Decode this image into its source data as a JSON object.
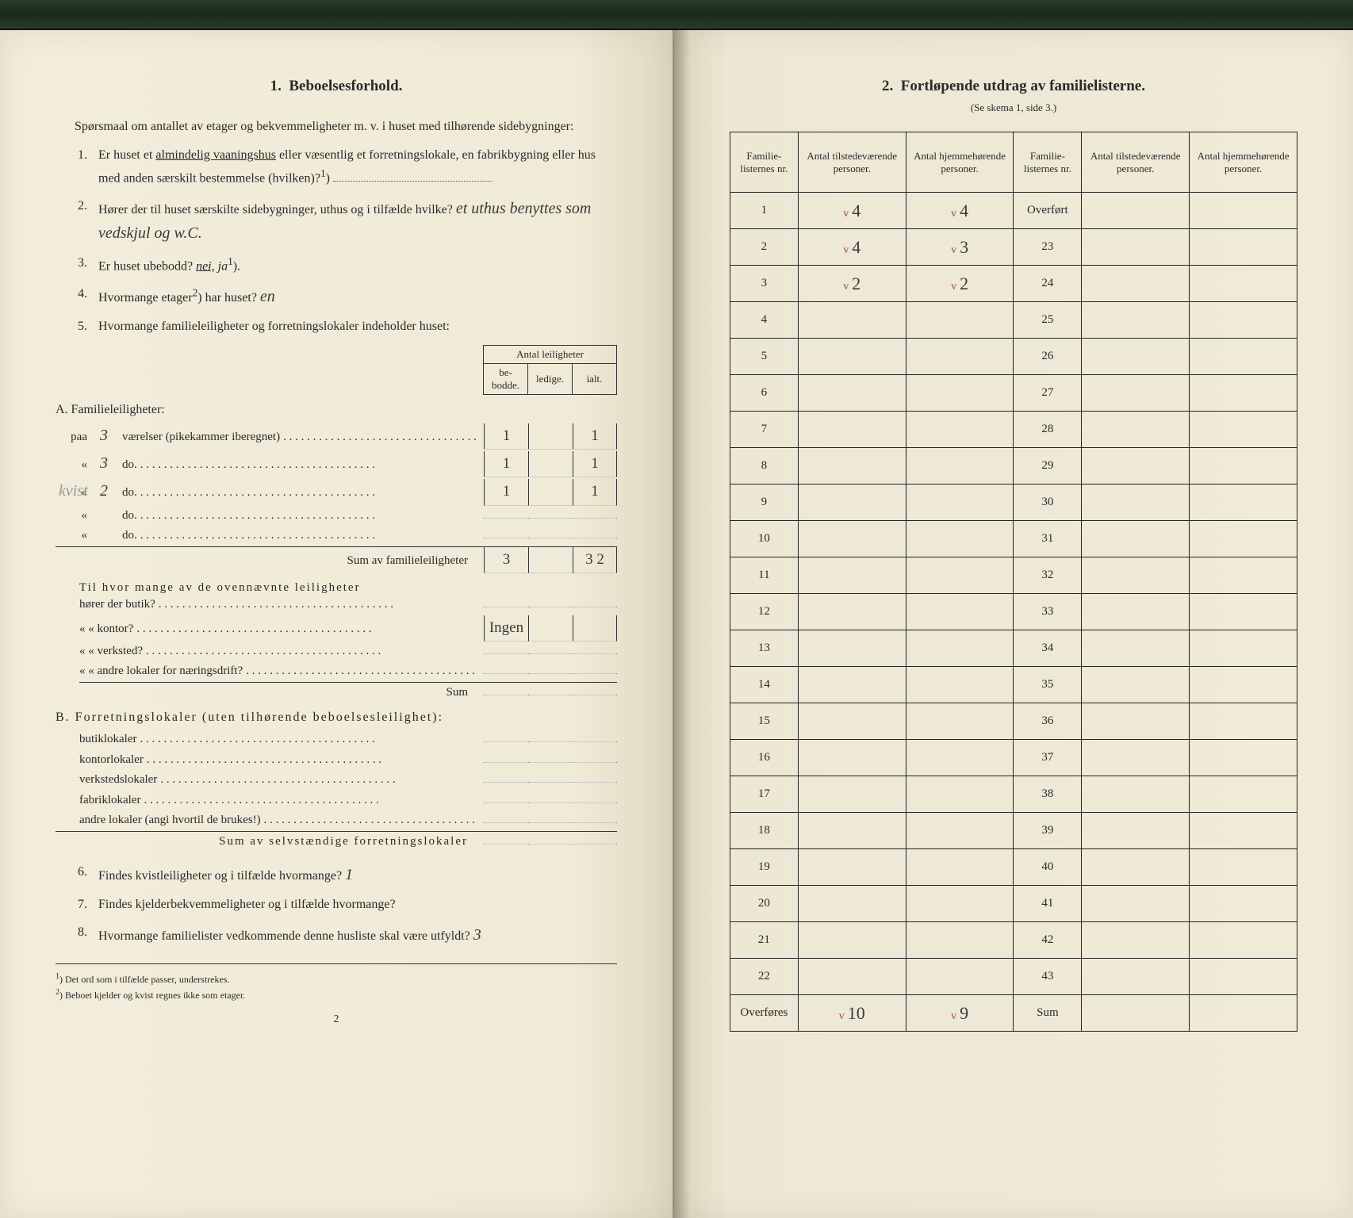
{
  "top_strip_color": "#1f2e1f",
  "page_bg": "#f0ead8",
  "text_color": "#2a2a2a",
  "handwriting_color": "#3a3a3a",
  "check_color": "#b04040",
  "left": {
    "section_num": "1.",
    "section_title": "Beboelsesforhold.",
    "intro": "Spørsmaal om antallet av etager og bekvemmeligheter m. v. i huset med tilhørende sidebygninger:",
    "questions": {
      "q1": {
        "num": "1.",
        "text_a": "Er huset et ",
        "underlined": "almindelig vaaningshus",
        "text_b": " eller væsentlig et forretningslokale, en fabrikbygning eller hus med anden særskilt bestemmelse (hvilken)?",
        "sup": "1"
      },
      "q2": {
        "num": "2.",
        "text": "Hører der til huset særskilte sidebygninger, uthus og i tilfælde hvilke?",
        "answer": "et uthus benyttes som vedskjul og w.C."
      },
      "q3": {
        "num": "3.",
        "text": "Er huset ubebodd?",
        "answer_pre": "nei,",
        "answer_post": " ja",
        "sup": "1"
      },
      "q4": {
        "num": "4.",
        "text": "Hvormange etager",
        "sup": "2",
        "text_b": ") har huset?",
        "answer": "en"
      },
      "q5": {
        "num": "5.",
        "text": "Hvormange familieleiligheter og forretningslokaler indeholder huset:"
      }
    },
    "mini_table": {
      "header_top": "Antal leiligheter",
      "headers": [
        "be-\nbodde.",
        "ledige.",
        "ialt."
      ]
    },
    "section_a": {
      "label": "A. Familieleiligheter:",
      "rows": [
        {
          "prefix": "paa",
          "hw": "3",
          "label": "værelser (pikekammer iberegnet)",
          "cells": [
            "1",
            "",
            "1"
          ]
        },
        {
          "prefix": "«",
          "hw": "3",
          "label": "do.",
          "cells": [
            "1",
            "",
            "1"
          ]
        },
        {
          "prefix": "«",
          "hw": "2",
          "label": "do.",
          "cells": [
            "1",
            "",
            "1"
          ],
          "note": "kvist"
        },
        {
          "prefix": "«",
          "hw": "",
          "label": "do.",
          "cells": [
            "",
            "",
            ""
          ]
        },
        {
          "prefix": "«",
          "hw": "",
          "label": "do.",
          "cells": [
            "",
            "",
            ""
          ]
        }
      ],
      "sum_label": "Sum av familieleiligheter",
      "sum_cells": [
        "3",
        "",
        "3 2"
      ]
    },
    "extras": {
      "intro": "Til hvor mange av de ovennævnte leiligheter",
      "rows": [
        {
          "label": "hører der butik?",
          "hw": ""
        },
        {
          "label": "«      «   kontor?",
          "hw": "Ingen"
        },
        {
          "label": "«      «   verksted?",
          "hw": ""
        },
        {
          "label": "«      «   andre lokaler for næringsdrift?",
          "hw": ""
        }
      ],
      "sum": "Sum"
    },
    "section_b": {
      "label": "B. Forretningslokaler (uten tilhørende beboelsesleilighet):",
      "rows": [
        "butiklokaler",
        "kontorlokaler",
        "verkstedslokaler",
        "fabriklokaler",
        "andre lokaler (angi hvortil de brukes!)"
      ],
      "sum_label": "Sum av selvstændige forretningslokaler"
    },
    "q6": {
      "num": "6.",
      "text": "Findes kvistleiligheter og i tilfælde hvormange?",
      "answer": "1"
    },
    "q7": {
      "num": "7.",
      "text": "Findes kjelderbekvemmeligheter og i tilfælde hvormange?"
    },
    "q8": {
      "num": "8.",
      "text": "Hvormange familielister vedkommende denne husliste skal være utfyldt?",
      "answer": "3"
    },
    "footnotes": {
      "f1": "Det ord som i tilfælde passer, understrekes.",
      "f2": "Beboet kjelder og kvist regnes ikke som etager."
    },
    "page_num": "2"
  },
  "right": {
    "section_num": "2.",
    "section_title": "Fortløpende utdrag av familielisterne.",
    "subtitle": "(Se skema 1, side 3.)",
    "headers": [
      "Familie-\nlisternes\nnr.",
      "Antal\ntilstedeværende\npersoner.",
      "Antal\nhjemmehørende\npersoner.",
      "Familie-\nlisternes\nnr.",
      "Antal\ntilstedeværende\npersoner.",
      "Antal\nhjemmehørende\npersoner."
    ],
    "rows": [
      {
        "l": "1",
        "a": "4",
        "b": "4",
        "r": "Overført",
        "c": "",
        "d": ""
      },
      {
        "l": "2",
        "a": "4",
        "b": "3",
        "r": "23",
        "c": "",
        "d": ""
      },
      {
        "l": "3",
        "a": "2",
        "b": "2",
        "r": "24",
        "c": "",
        "d": ""
      },
      {
        "l": "4",
        "a": "",
        "b": "",
        "r": "25",
        "c": "",
        "d": ""
      },
      {
        "l": "5",
        "a": "",
        "b": "",
        "r": "26",
        "c": "",
        "d": ""
      },
      {
        "l": "6",
        "a": "",
        "b": "",
        "r": "27",
        "c": "",
        "d": ""
      },
      {
        "l": "7",
        "a": "",
        "b": "",
        "r": "28",
        "c": "",
        "d": ""
      },
      {
        "l": "8",
        "a": "",
        "b": "",
        "r": "29",
        "c": "",
        "d": ""
      },
      {
        "l": "9",
        "a": "",
        "b": "",
        "r": "30",
        "c": "",
        "d": ""
      },
      {
        "l": "10",
        "a": "",
        "b": "",
        "r": "31",
        "c": "",
        "d": ""
      },
      {
        "l": "11",
        "a": "",
        "b": "",
        "r": "32",
        "c": "",
        "d": ""
      },
      {
        "l": "12",
        "a": "",
        "b": "",
        "r": "33",
        "c": "",
        "d": ""
      },
      {
        "l": "13",
        "a": "",
        "b": "",
        "r": "34",
        "c": "",
        "d": ""
      },
      {
        "l": "14",
        "a": "",
        "b": "",
        "r": "35",
        "c": "",
        "d": ""
      },
      {
        "l": "15",
        "a": "",
        "b": "",
        "r": "36",
        "c": "",
        "d": ""
      },
      {
        "l": "16",
        "a": "",
        "b": "",
        "r": "37",
        "c": "",
        "d": ""
      },
      {
        "l": "17",
        "a": "",
        "b": "",
        "r": "38",
        "c": "",
        "d": ""
      },
      {
        "l": "18",
        "a": "",
        "b": "",
        "r": "39",
        "c": "",
        "d": ""
      },
      {
        "l": "19",
        "a": "",
        "b": "",
        "r": "40",
        "c": "",
        "d": ""
      },
      {
        "l": "20",
        "a": "",
        "b": "",
        "r": "41",
        "c": "",
        "d": ""
      },
      {
        "l": "21",
        "a": "",
        "b": "",
        "r": "42",
        "c": "",
        "d": ""
      },
      {
        "l": "22",
        "a": "",
        "b": "",
        "r": "43",
        "c": "",
        "d": ""
      },
      {
        "l": "Overføres",
        "a": "10",
        "b": "9",
        "r": "Sum",
        "c": "",
        "d": ""
      }
    ]
  }
}
